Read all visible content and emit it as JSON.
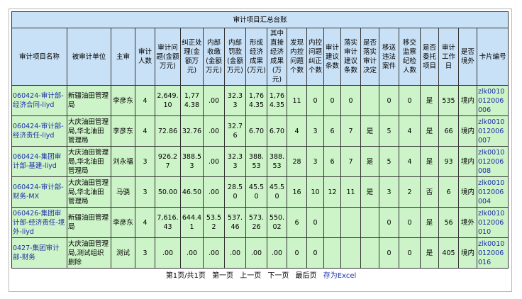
{
  "table": {
    "title": "审计项目汇总台账",
    "headers": [
      "审计项目名称",
      "被审计单位",
      "主审",
      "审计人数",
      "审计问题(金额万元)",
      "纠正处理(金额万元)",
      "内部收缴(金额万元)",
      "内部罚款(金额万元)",
      "形成经济成果(万元)",
      "其中直接经济成果(万元)",
      "发现内控问题个数",
      "内控问题纠正个数",
      "审计建议条数",
      "落实审计建议条数",
      "是否落实审计决定",
      "移送违法案件",
      "移交监察纪检人数",
      "是否委托项目",
      "审计工作日",
      "是否境外",
      "卡片编号"
    ],
    "rows": [
      [
        "060424-审计部-经济合同-liyd",
        "新疆油田管理局",
        "李彦东",
        "4",
        "2,649.10",
        "1,774.38",
        ".00",
        "32.33",
        "1,764.35",
        "1,764.35",
        "11",
        "0",
        "0",
        "0",
        null,
        "0",
        "0",
        "是",
        "535",
        "境内",
        "zlk0010012006006"
      ],
      [
        "060424-审计部-经济责任-liyd",
        "大庆油田管理局,华北油田管理局",
        "李彦东",
        "4",
        "72.86",
        "32.76",
        ".00",
        "32.76",
        "6.70",
        "6.70",
        "4",
        "3",
        "6",
        "7",
        "是",
        "5",
        "4",
        "是",
        "66",
        "境内",
        "zlk0010012006007"
      ],
      [
        "060424-集团审计部-基建-liyd",
        "大庆油田管理局,华北油田管理局",
        "刘永福",
        "3",
        "926.27",
        "388.53",
        ".00",
        "32.33",
        "388.53",
        "388.53",
        "28",
        "3",
        "6",
        "7",
        "是",
        "5",
        "4",
        "是",
        "93",
        "境内",
        "zlk0010012006008"
      ],
      [
        "060424-审计部-财务-MX",
        "大庆油田管理局,华北油田管理局",
        "马骁",
        "3",
        "50.00",
        "46.50",
        ".00",
        "28.50",
        "45.50",
        "45.50",
        "16",
        "10",
        "12",
        "11",
        "是",
        "3",
        "2",
        "否",
        "6",
        "境内",
        "zlk0010012006004"
      ],
      [
        "060426-集团审计部-经济责任-境外-liyd",
        "新疆油田管理局",
        "李彦东",
        "4",
        "7,616.43",
        "644.41",
        "53.52",
        "537.46",
        "573.26",
        "550.02",
        "6",
        "0",
        null,
        null,
        null,
        "0",
        "0",
        "是",
        "56",
        "境外",
        "zlk0010012006010"
      ],
      [
        "0427-集团审计部-财务",
        "大庆油田管理局,测试组织删除",
        "测试",
        "3",
        ".00",
        ".00",
        ".00",
        ".00",
        ".00",
        ".00",
        "0",
        "0",
        null,
        null,
        null,
        "0",
        "0",
        "是",
        "405",
        "境内",
        "zlk0010012006016"
      ]
    ]
  },
  "pager": {
    "info": "第1页/共1页",
    "first": "第一页",
    "prev": "上一页",
    "next": "下一页",
    "last": "最后页",
    "export": "存为Excel"
  }
}
